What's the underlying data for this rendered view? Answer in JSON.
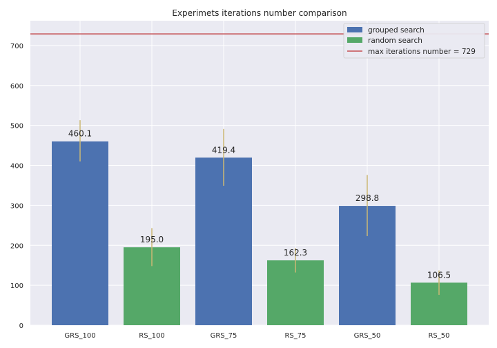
{
  "chart_data": {
    "type": "bar",
    "title": "Experimets iterations number comparison",
    "xlabel": "",
    "ylabel": "",
    "categories": [
      "GRS_100",
      "RS_100",
      "GRS_75",
      "RS_75",
      "GRS_50",
      "RS_50"
    ],
    "values": [
      460.1,
      195.0,
      419.4,
      162.3,
      298.8,
      106.5
    ],
    "value_labels": [
      "460.1",
      "195.0",
      "419.4",
      "162.3",
      "298.8",
      "106.5"
    ],
    "error_ranges": [
      [
        410,
        513
      ],
      [
        148,
        243
      ],
      [
        349,
        491
      ],
      [
        132,
        193
      ],
      [
        223,
        376
      ],
      [
        76,
        137
      ]
    ],
    "bar_series": [
      "grouped",
      "random",
      "grouped",
      "random",
      "grouped",
      "random"
    ],
    "series": [
      {
        "key": "grouped",
        "name": "grouped search",
        "color": "#4c72b0"
      },
      {
        "key": "random",
        "name": "random search",
        "color": "#55a868"
      }
    ],
    "reference_line": {
      "value": 729,
      "label": "max iterations number = 729",
      "color": "#c44e52"
    },
    "errorbar_color": "#ccb974",
    "ylim": [
      0,
      762
    ],
    "yticks": [
      "0",
      "100",
      "200",
      "300",
      "400",
      "500",
      "600",
      "700"
    ],
    "ytick_values": [
      0,
      100,
      200,
      300,
      400,
      500,
      600,
      700
    ],
    "grid": true,
    "background": "#eaeaf2",
    "legend_position": "upper right"
  }
}
